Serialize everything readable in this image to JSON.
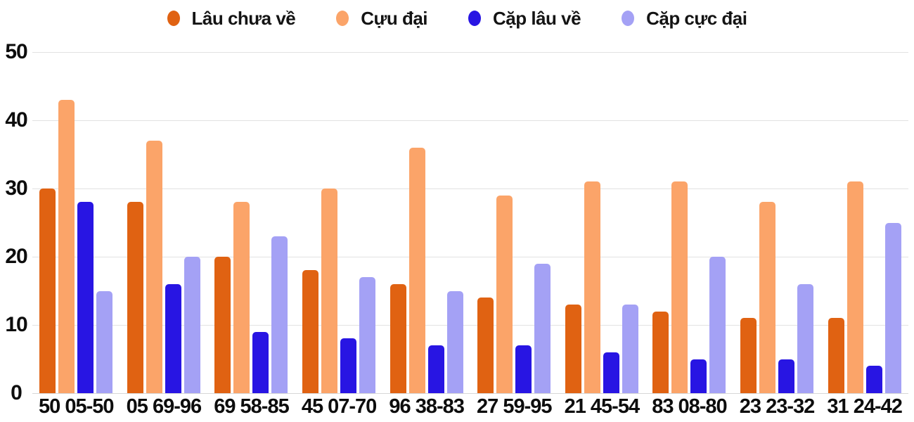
{
  "chart_data": {
    "type": "bar",
    "title": "",
    "xlabel": "",
    "ylabel": "",
    "ylim": [
      0,
      50
    ],
    "yticks": [
      0,
      10,
      20,
      30,
      40,
      50
    ],
    "grid": true,
    "legend_position": "top",
    "categories": [
      "50 05-50",
      "05 69-96",
      "69 58-85",
      "45 07-70",
      "96 38-83",
      "27 59-95",
      "21 45-54",
      "83 08-80",
      "23 23-32",
      "31 24-42"
    ],
    "series": [
      {
        "name": "Lâu chưa về",
        "color": "#E06212",
        "values": [
          30,
          28,
          20,
          18,
          16,
          14,
          13,
          12,
          11,
          11
        ]
      },
      {
        "name": "Cựu đại",
        "color": "#FBA469",
        "values": [
          43,
          37,
          28,
          30,
          36,
          29,
          31,
          31,
          28,
          31
        ]
      },
      {
        "name": "Cặp lâu về",
        "color": "#2815E3",
        "values": [
          28,
          16,
          9,
          8,
          7,
          7,
          6,
          5,
          5,
          4
        ]
      },
      {
        "name": "Cặp cực đại",
        "color": "#A4A1F5",
        "values": [
          15,
          20,
          23,
          17,
          15,
          19,
          13,
          20,
          16,
          25
        ]
      }
    ],
    "colors": {
      "gridline": "#E2E2E2",
      "baseline": "#D7D7D7",
      "text": "#0D0D0D"
    }
  }
}
